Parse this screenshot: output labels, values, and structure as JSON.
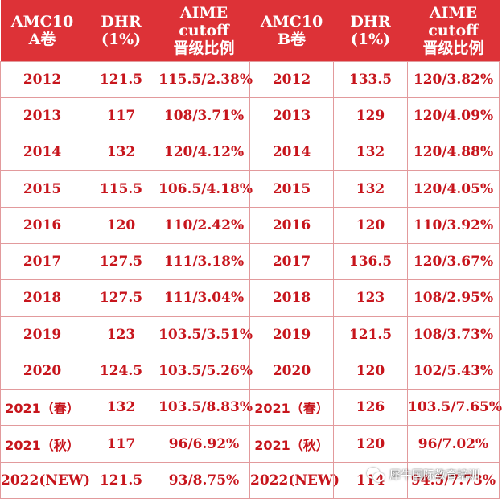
{
  "header": {
    "a_exam_line1": "AMC10",
    "a_exam_line2": "A卷",
    "a_dhr_line1": "DHR",
    "a_dhr_line2": "(1%)",
    "a_cutoff_line1": "AIME cutoff",
    "a_cutoff_line2": "晋级比例",
    "b_exam_line1": "AMC10",
    "b_exam_line2": "B卷",
    "b_dhr_line1": "DHR",
    "b_dhr_line2": "(1%)",
    "b_cutoff_line1": "AIME cutoff",
    "b_cutoff_line2": "晋级比例"
  },
  "rows": [
    {
      "a_year": "2012",
      "a_dhr": "121.5",
      "a_cutoff": "115.5/2.38%",
      "b_year": "2012",
      "b_dhr": "133.5",
      "b_cutoff": "120/3.82%"
    },
    {
      "a_year": "2013",
      "a_dhr": "117",
      "a_cutoff": "108/3.71%",
      "b_year": "2013",
      "b_dhr": "129",
      "b_cutoff": "120/4.09%"
    },
    {
      "a_year": "2014",
      "a_dhr": "132",
      "a_cutoff": "120/4.12%",
      "b_year": "2014",
      "b_dhr": "132",
      "b_cutoff": "120/4.88%"
    },
    {
      "a_year": "2015",
      "a_dhr": "115.5",
      "a_cutoff": "106.5/4.18%",
      "b_year": "2015",
      "b_dhr": "132",
      "b_cutoff": "120/4.05%"
    },
    {
      "a_year": "2016",
      "a_dhr": "120",
      "a_cutoff": "110/2.42%",
      "b_year": "2016",
      "b_dhr": "120",
      "b_cutoff": "110/3.92%"
    },
    {
      "a_year": "2017",
      "a_dhr": "127.5",
      "a_cutoff": "111/3.18%",
      "b_year": "2017",
      "b_dhr": "136.5",
      "b_cutoff": "120/3.67%"
    },
    {
      "a_year": "2018",
      "a_dhr": "127.5",
      "a_cutoff": "111/3.04%",
      "b_year": "2018",
      "b_dhr": "123",
      "b_cutoff": "108/2.95%"
    },
    {
      "a_year": "2019",
      "a_dhr": "123",
      "a_cutoff": "103.5/3.51%",
      "b_year": "2019",
      "b_dhr": "121.5",
      "b_cutoff": "108/3.73%"
    },
    {
      "a_year": "2020",
      "a_dhr": "124.5",
      "a_cutoff": "103.5/5.26%",
      "b_year": "2020",
      "b_dhr": "120",
      "b_cutoff": "102/5.43%"
    },
    {
      "a_year": "2021（春）",
      "a_dhr": "132",
      "a_cutoff": "103.5/8.83%",
      "b_year": "2021（春）",
      "b_dhr": "126",
      "b_cutoff": "103.5/7.65%"
    },
    {
      "a_year": "2021（秋）",
      "a_dhr": "117",
      "a_cutoff": "96/6.92%",
      "b_year": "2021（秋）",
      "b_dhr": "120",
      "b_cutoff": "96/7.02%"
    },
    {
      "a_year": "2022(NEW)",
      "a_dhr": "121.5",
      "a_cutoff": "93/8.75%",
      "b_year": "2022(NEW)",
      "b_dhr": "114",
      "b_cutoff": "94.5/7.73%"
    }
  ],
  "watermark": {
    "text": "犀牛国际教育培训",
    "icon": "wechat-icon"
  },
  "colors": {
    "header_bg": "#dd3237",
    "header_text": "#ffffff",
    "cell_text": "#c7151c",
    "grid_line": "#e29a9c"
  }
}
